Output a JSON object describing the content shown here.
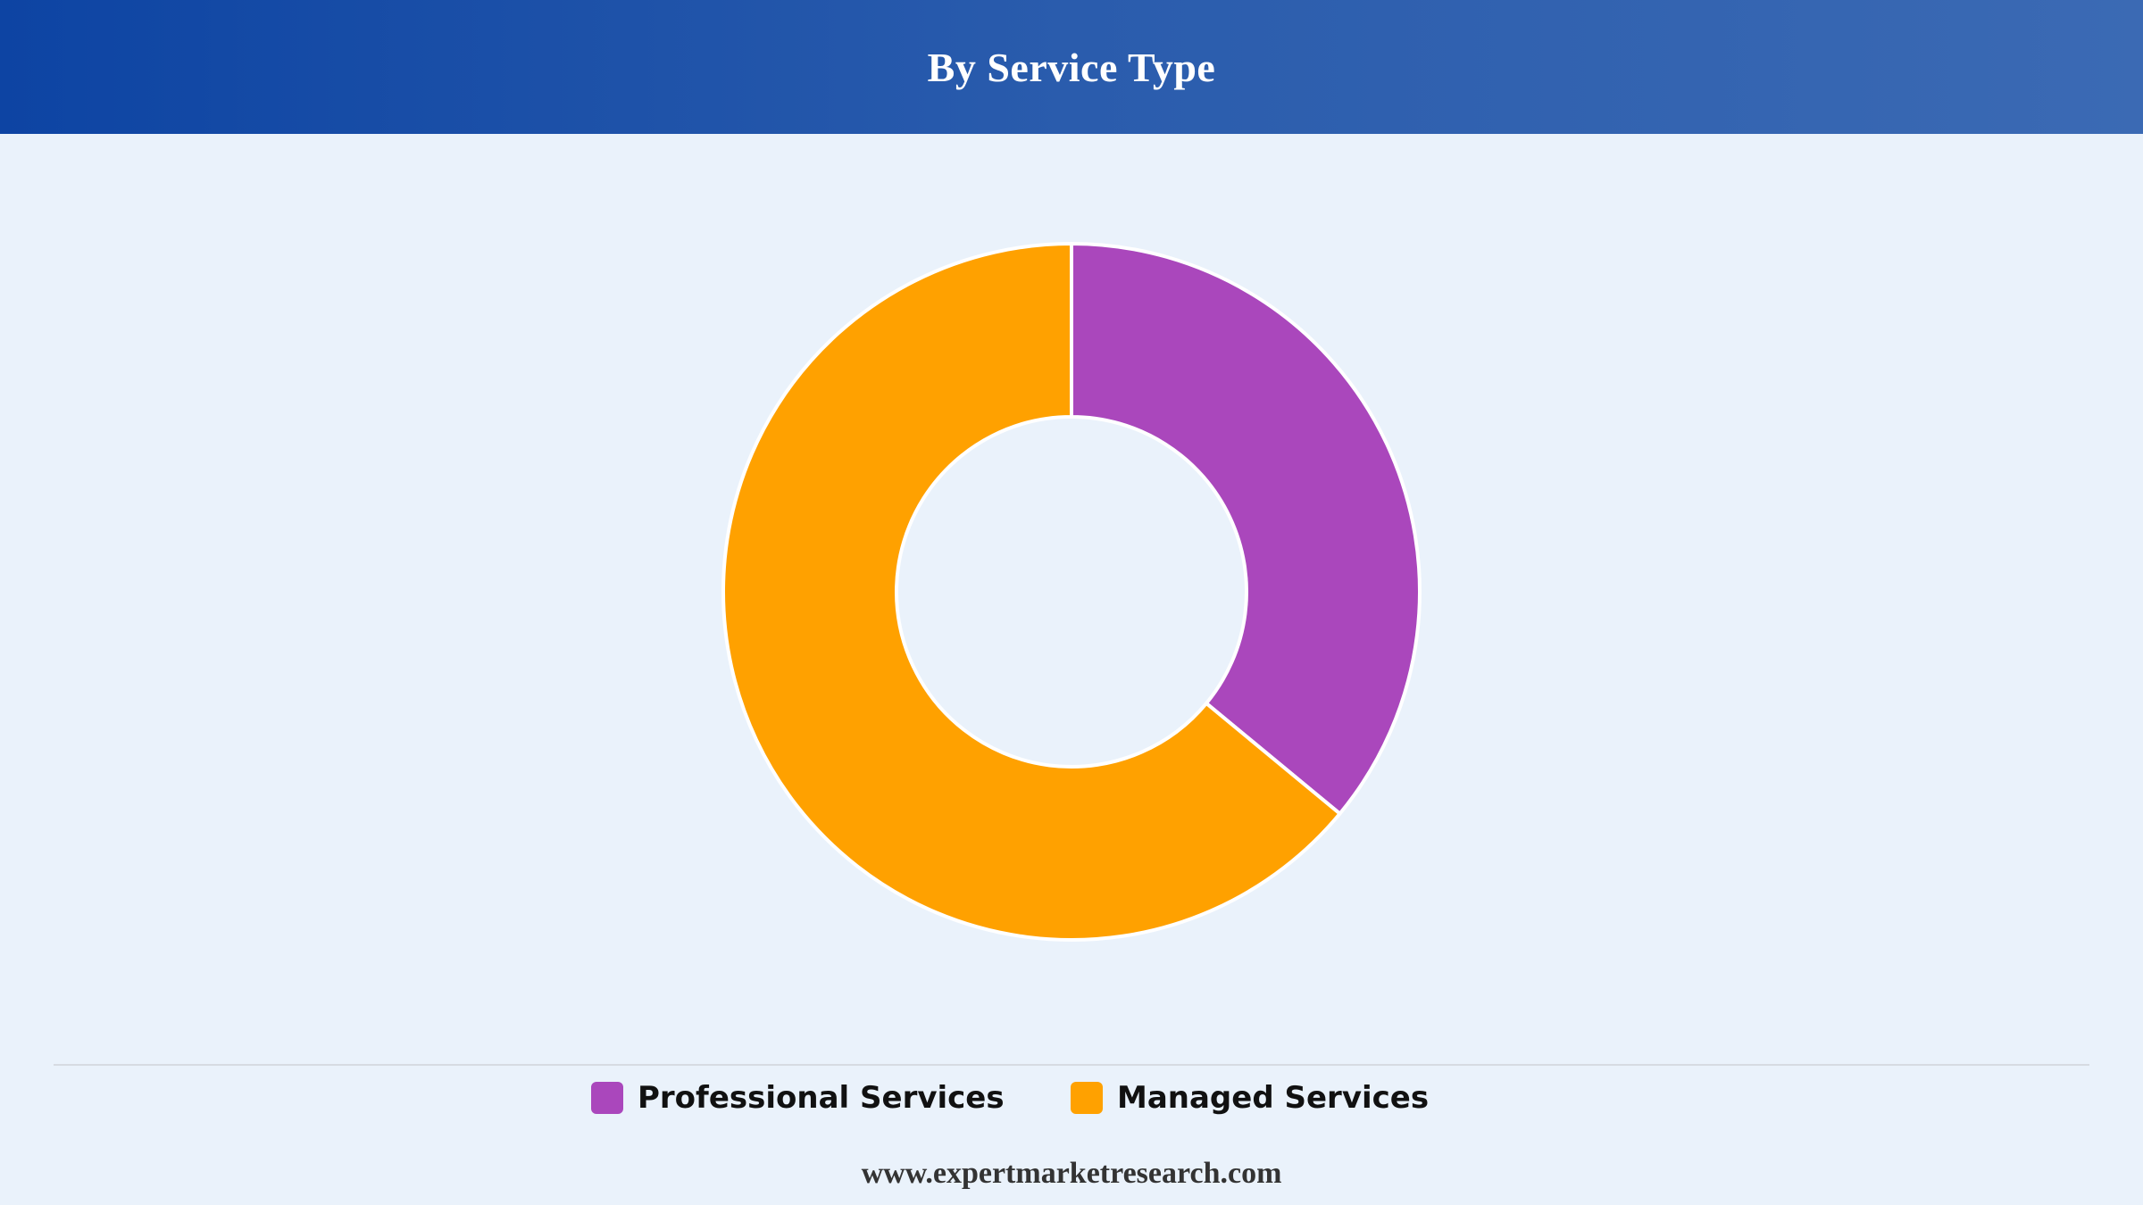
{
  "header": {
    "title": "By Service Type"
  },
  "chart_data": {
    "type": "pie",
    "title": "By Service Type",
    "categories": [
      "Professional Services",
      "Managed Services"
    ],
    "values": [
      36,
      64
    ],
    "colors": [
      "#aa47bc",
      "#ffa100"
    ],
    "donut": true,
    "legend_position": "bottom"
  },
  "legend": {
    "items": [
      {
        "label": "Professional Services",
        "color": "#aa47bc"
      },
      {
        "label": "Managed Services",
        "color": "#ffa100"
      }
    ]
  },
  "footer": {
    "source": "www.expertmarketresearch.com"
  },
  "colors": {
    "header_start": "#0d44a3",
    "header_end": "#3b6ab4",
    "background": "#eaf2fb",
    "slice_border": "#ffffff"
  }
}
